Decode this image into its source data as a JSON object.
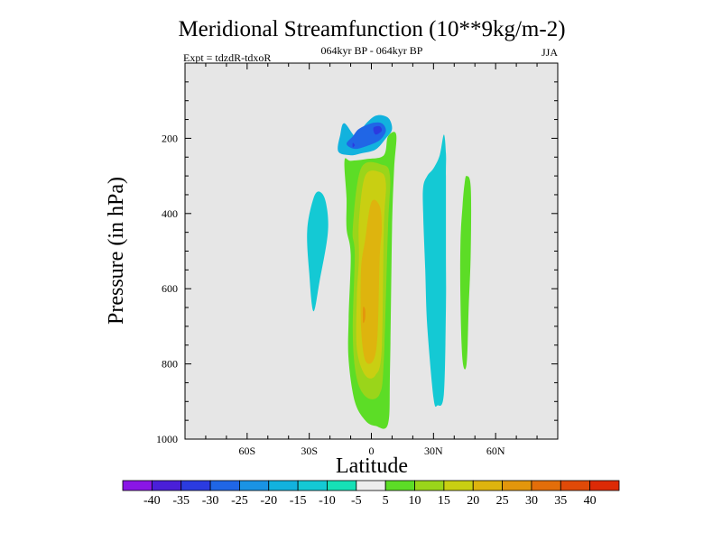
{
  "chart_data": {
    "type": "contour",
    "title": "Meridional Streamfunction (10**9kg/m-2)",
    "subtitle": "064kyr BP - 064kyr BP",
    "experiment": "Expt = tdzdR-tdxoR",
    "season": "JJA",
    "xlabel": "Latitude",
    "ylabel": "Pressure (in hPa)",
    "x_ticks": [
      "60S",
      "30S",
      "0",
      "30N",
      "60N"
    ],
    "x_tick_values": [
      -60,
      -30,
      0,
      30,
      60
    ],
    "xlim": [
      -90,
      90
    ],
    "y_ticks": [
      "200",
      "400",
      "600",
      "800",
      "1000"
    ],
    "y_tick_values": [
      200,
      400,
      600,
      800,
      1000
    ],
    "ylim": [
      0,
      1000
    ],
    "y_inverted": true,
    "colorbar": {
      "labels": [
        "-40",
        "-35",
        "-30",
        "-25",
        "-20",
        "-15",
        "-10",
        "-5",
        "5",
        "10",
        "15",
        "20",
        "25",
        "30",
        "35",
        "40"
      ],
      "colors": [
        "#8a16e6",
        "#4a1fd8",
        "#2b3be0",
        "#2066e6",
        "#1a93e4",
        "#12b2de",
        "#14c9d4",
        "#16e0b6",
        "#ededed",
        "#5cdd26",
        "#9ad51a",
        "#c9cf12",
        "#deb40e",
        "#e3960c",
        "#e36e0a",
        "#e04a08",
        "#dc2a06"
      ]
    },
    "contours": [
      {
        "name": "upper-cell-outer",
        "color_index": 5,
        "points": [
          [
            -7,
            200
          ],
          [
            -4,
            170
          ],
          [
            2,
            140
          ],
          [
            8,
            145
          ],
          [
            10,
            175
          ],
          [
            7,
            200
          ],
          [
            2,
            230
          ],
          [
            -5,
            240
          ],
          [
            -10,
            245
          ],
          [
            -16,
            235
          ],
          [
            -15,
            190
          ],
          [
            -13,
            160
          ]
        ]
      },
      {
        "name": "upper-cell-inner",
        "color_index": 3,
        "points": [
          [
            -9,
            195
          ],
          [
            -6,
            175
          ],
          [
            0,
            160
          ],
          [
            5,
            160
          ],
          [
            7,
            180
          ],
          [
            4,
            205
          ],
          [
            -2,
            220
          ],
          [
            -8,
            228
          ],
          [
            -12,
            215
          ]
        ]
      },
      {
        "name": "upper-cell-core",
        "color_index": 2,
        "points": [
          [
            1,
            172
          ],
          [
            4,
            168
          ],
          [
            5,
            180
          ],
          [
            2,
            190
          ]
        ]
      },
      {
        "name": "upper-cell-core-2",
        "color_index": 2,
        "points": [
          [
            -9,
            212
          ],
          [
            -8,
            218
          ],
          [
            -9,
            224
          ]
        ]
      },
      {
        "name": "south-cell",
        "color_index": 6,
        "points": [
          [
            -31,
            445
          ],
          [
            -28,
            360
          ],
          [
            -25,
            342
          ],
          [
            -22,
            370
          ],
          [
            -21,
            450
          ],
          [
            -25,
            580
          ],
          [
            -28,
            660
          ],
          [
            -30,
            560
          ]
        ]
      },
      {
        "name": "central-cell-outer",
        "color_index": 9,
        "points": [
          [
            -13,
            260
          ],
          [
            -10,
            260
          ],
          [
            -2,
            255
          ],
          [
            6,
            245
          ],
          [
            8,
            195
          ],
          [
            12,
            190
          ],
          [
            11,
            280
          ],
          [
            10,
            440
          ],
          [
            9,
            820
          ],
          [
            8,
            960
          ],
          [
            2,
            965
          ],
          [
            -3,
            950
          ],
          [
            -8,
            900
          ],
          [
            -11,
            790
          ],
          [
            -11,
            680
          ],
          [
            -10,
            510
          ],
          [
            -12,
            440
          ],
          [
            -12,
            360
          ]
        ]
      },
      {
        "name": "central-cell-10",
        "color_index": 10,
        "points": [
          [
            -5,
            280
          ],
          [
            5,
            270
          ],
          [
            9,
            300
          ],
          [
            8,
            440
          ],
          [
            6,
            790
          ],
          [
            4,
            880
          ],
          [
            -2,
            890
          ],
          [
            -7,
            840
          ],
          [
            -9,
            720
          ],
          [
            -8,
            510
          ],
          [
            -9,
            440
          ]
        ]
      },
      {
        "name": "central-cell-15",
        "color_index": 11,
        "points": [
          [
            -3,
            300
          ],
          [
            4,
            290
          ],
          [
            7,
            320
          ],
          [
            6,
            440
          ],
          [
            5,
            760
          ],
          [
            2,
            830
          ],
          [
            -3,
            830
          ],
          [
            -7,
            760
          ],
          [
            -7,
            620
          ],
          [
            -6,
            520
          ],
          [
            -6,
            420
          ]
        ]
      },
      {
        "name": "central-cell-20",
        "color_index": 12,
        "points": [
          [
            0,
            370
          ],
          [
            4,
            380
          ],
          [
            5,
            440
          ],
          [
            4,
            520
          ],
          [
            3,
            720
          ],
          [
            1,
            790
          ],
          [
            -3,
            790
          ],
          [
            -5,
            700
          ],
          [
            -5,
            550
          ],
          [
            -3,
            470
          ]
        ]
      },
      {
        "name": "central-cell-25",
        "color_index": 13,
        "points": [
          [
            -4,
            650
          ],
          [
            -3,
            655
          ],
          [
            -3,
            680
          ],
          [
            -4,
            690
          ]
        ]
      },
      {
        "name": "north-cell-1",
        "color_index": 6,
        "points": [
          [
            27,
            300
          ],
          [
            30,
            280
          ],
          [
            33,
            245
          ],
          [
            35,
            190
          ],
          [
            36,
            240
          ],
          [
            36,
            300
          ],
          [
            36,
            500
          ],
          [
            36,
            650
          ],
          [
            35,
            880
          ],
          [
            32,
            910
          ],
          [
            30,
            890
          ],
          [
            27,
            700
          ],
          [
            26,
            550
          ],
          [
            25,
            400
          ],
          [
            25,
            330
          ]
        ]
      },
      {
        "name": "north-cell-2",
        "color_index": 9,
        "points": [
          [
            45,
            320
          ],
          [
            46,
            300
          ],
          [
            48,
            330
          ],
          [
            48,
            500
          ],
          [
            47,
            650
          ],
          [
            46,
            800
          ],
          [
            44,
            790
          ],
          [
            43,
            630
          ],
          [
            43,
            480
          ],
          [
            44,
            380
          ]
        ]
      }
    ]
  }
}
